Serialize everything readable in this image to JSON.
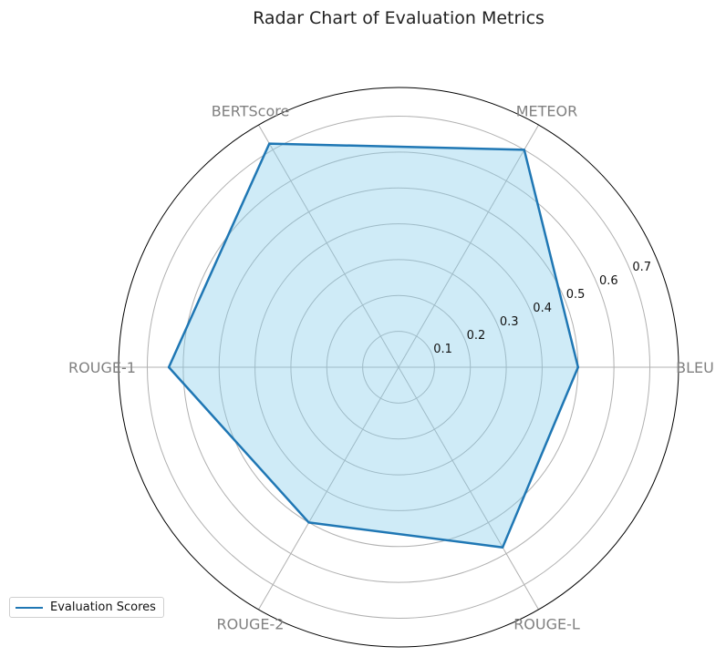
{
  "chart_data": {
    "type": "radar",
    "title": "Radar Chart of Evaluation Metrics",
    "categories": [
      "BLEU",
      "METEOR",
      "BERTScore",
      "ROUGE-1",
      "ROUGE-2",
      "ROUGE-L"
    ],
    "series": [
      {
        "name": "Evaluation Scores",
        "values": [
          0.5,
          0.7,
          0.72,
          0.64,
          0.5,
          0.58
        ]
      }
    ],
    "rlim": [
      0,
      0.78
    ],
    "rticks": [
      0.1,
      0.2,
      0.3,
      0.4,
      0.5,
      0.6,
      0.7
    ],
    "grid": true,
    "legend_position": "lower-left",
    "colors": {
      "line": "#1f77b4",
      "fill": "#87ceeb",
      "grid": "#b0b0b0",
      "labels": "#808080"
    }
  }
}
